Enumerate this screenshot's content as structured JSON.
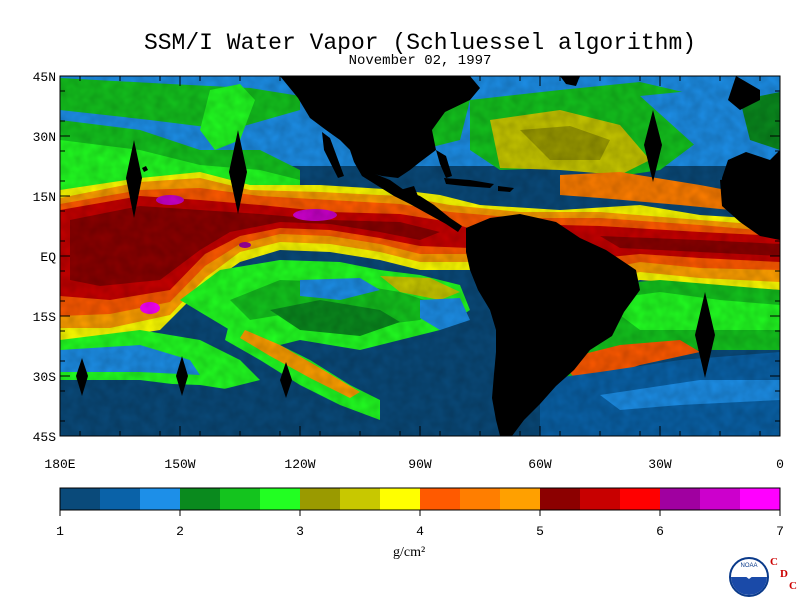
{
  "title": "SSM/I Water Vapor (Schluessel algorithm)",
  "date": "November 02, 1997",
  "lat_labels": [
    "45N",
    "30N",
    "15N",
    "EQ",
    "15S",
    "30S",
    "45S"
  ],
  "lon_labels": [
    "180E",
    "150W",
    "120W",
    "90W",
    "60W",
    "30W",
    "0"
  ],
  "colorbar": {
    "colors": [
      "#0a4a7a",
      "#0a62a8",
      "#1d8fe8",
      "#0a8a1e",
      "#14c41e",
      "#22ff22",
      "#9a9a00",
      "#c8c800",
      "#ffff00",
      "#ff5a00",
      "#ff7e00",
      "#ffa000",
      "#8c0000",
      "#c80000",
      "#ff0000",
      "#a000a0",
      "#cc00cc",
      "#ff00ff"
    ],
    "tick_labels": [
      "1",
      "2",
      "3",
      "4",
      "5",
      "6",
      "7"
    ],
    "units_label": "g/cm²"
  },
  "logo": {
    "text": "NOAA",
    "icon": "noaa-seagull-logo",
    "letters": [
      "C",
      "D",
      "C"
    ]
  }
}
